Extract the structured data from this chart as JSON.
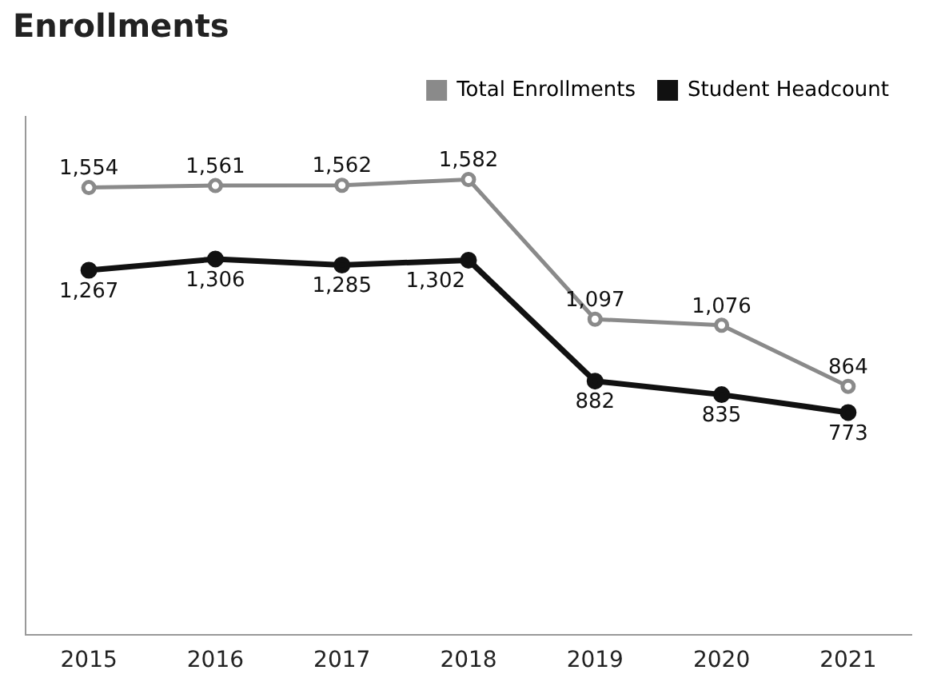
{
  "chart_data": {
    "type": "line",
    "title": "Enrollments",
    "categories": [
      "2015",
      "2016",
      "2017",
      "2018",
      "2019",
      "2020",
      "2021"
    ],
    "series": [
      {
        "name": "Total Enrollments",
        "color": "#8a8a8a",
        "values": [
          1554,
          1561,
          1562,
          1582,
          1097,
          1076,
          864
        ],
        "value_labels": [
          "1,554",
          "1,561",
          "1,562",
          "1,582",
          "1,097",
          "1,076",
          "864"
        ]
      },
      {
        "name": "Student Headcount",
        "color": "#111111",
        "values": [
          1267,
          1306,
          1285,
          1302,
          882,
          835,
          773
        ],
        "value_labels": [
          "1,267",
          "1,306",
          "1,285",
          "1,302",
          "882",
          "835",
          "773"
        ]
      }
    ],
    "legend": "top right",
    "marker": "circle",
    "line_style": "solid",
    "grid": false,
    "tick_labels": "x"
  }
}
